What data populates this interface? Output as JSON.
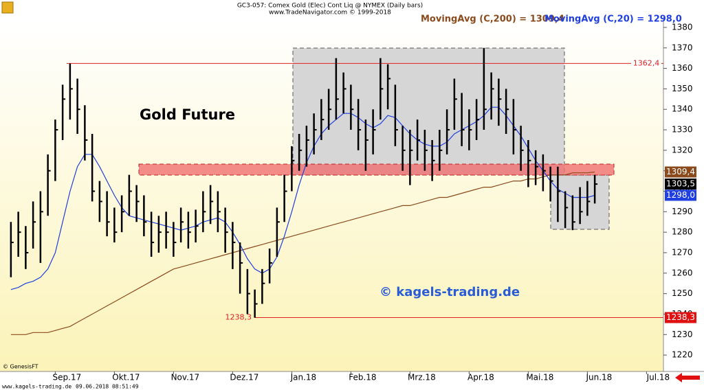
{
  "chart_data": {
    "type": "ohlc",
    "title": "Gold Future",
    "header": [
      "GC3-057:  Comex Gold (Elec) Cont Liq @ NYMEX  (Daily bars)",
      "www.TradeNavigator.com © 1999-2018"
    ],
    "categories": [
      null,
      null,
      null,
      null,
      null,
      null,
      "Sep.17",
      null,
      null,
      null,
      null,
      null,
      null,
      null,
      "Okt.17",
      null,
      null,
      null,
      null,
      null,
      null,
      null,
      "Nov.17",
      null,
      null,
      null,
      null,
      null,
      null,
      null,
      "Dez.17",
      null,
      null,
      null,
      null,
      null,
      null,
      null,
      "Jan.18",
      null,
      null,
      null,
      null,
      null,
      null,
      null,
      "Feb.18",
      null,
      null,
      null,
      null,
      null,
      null,
      null,
      "Mrz.18",
      null,
      null,
      null,
      null,
      null,
      null,
      null,
      "Apr.18",
      null,
      null,
      null,
      null,
      null,
      null,
      null,
      "Mai.18",
      null,
      null,
      null,
      null,
      null,
      null,
      null,
      "Jun.18",
      null,
      null,
      null,
      null,
      null,
      null,
      null,
      "Jul.18"
    ],
    "high": [
      1285,
      1290,
      1283,
      1295,
      1300,
      1318,
      1335,
      1352,
      1362.4,
      1355,
      1342,
      1328,
      1305,
      1300,
      1292,
      1298,
      1308,
      1303,
      1298,
      1290,
      1288,
      1290,
      1285,
      1292,
      1290,
      1291,
      1300,
      1303,
      1300,
      1292,
      1285,
      1275,
      1262,
      1252,
      1262,
      1272,
      1292,
      1308,
      1322,
      1328,
      1332,
      1338,
      1345,
      1350,
      1365,
      1358,
      1352,
      1345,
      1335,
      1340,
      1365,
      1362,
      1352,
      1332,
      1330,
      1335,
      1330,
      1325,
      1330,
      1340,
      1355,
      1348,
      1340,
      1345,
      1370,
      1358,
      1355,
      1350,
      1345,
      1332,
      1325,
      1320,
      1318,
      1312,
      1312,
      1300,
      1298,
      1302,
      1305,
      1308,
      null,
      null,
      null,
      null,
      null,
      null,
      null
    ],
    "low": [
      1258,
      1268,
      1262,
      1272,
      1265,
      1288,
      1305,
      1325,
      1335,
      1328,
      1315,
      1295,
      1285,
      1278,
      1275,
      1280,
      1288,
      1285,
      1278,
      1268,
      1270,
      1272,
      1268,
      1275,
      1272,
      1275,
      1280,
      1284,
      1280,
      1270,
      1262,
      1250,
      1240,
      1238.3,
      1245,
      1255,
      1268,
      1285,
      1300,
      1310,
      1312,
      1318,
      1325,
      1330,
      1335,
      1338,
      1330,
      1320,
      1310,
      1318,
      1335,
      1340,
      1322,
      1310,
      1303,
      1315,
      1310,
      1305,
      1310,
      1318,
      1330,
      1322,
      1320,
      1325,
      1330,
      1335,
      1332,
      1328,
      1318,
      1310,
      1302,
      1303,
      1300,
      1295,
      1285,
      1282,
      1281,
      1284,
      1288,
      1294,
      null,
      null,
      null,
      null,
      null,
      null,
      null
    ],
    "close": [
      1275,
      1280,
      1270,
      1285,
      1290,
      1310,
      1330,
      1345,
      1350,
      1340,
      1325,
      1300,
      1295,
      1285,
      1280,
      1290,
      1300,
      1295,
      1285,
      1275,
      1280,
      1280,
      1275,
      1285,
      1280,
      1283,
      1290,
      1295,
      1290,
      1280,
      1275,
      1265,
      1250,
      1245,
      1255,
      1265,
      1285,
      1300,
      1315,
      1320,
      1325,
      1330,
      1335,
      1340,
      1345,
      1350,
      1340,
      1330,
      1325,
      1330,
      1350,
      1355,
      1330,
      1320,
      1320,
      1325,
      1320,
      1315,
      1320,
      1330,
      1345,
      1330,
      1330,
      1335,
      1340,
      1350,
      1345,
      1340,
      1330,
      1320,
      1315,
      1312,
      1310,
      1305,
      1300,
      1292,
      1285,
      1290,
      1295,
      1303.5,
      null,
      null,
      null,
      null,
      null,
      null,
      null
    ],
    "bar_color": "#000000",
    "series": [
      {
        "name": "MovingAvg (C,200) = 1309,4",
        "color": "#8b4a1c",
        "values": [
          1230,
          1230,
          1230,
          1231,
          1231,
          1231,
          1232,
          1233,
          1234,
          1236,
          1238,
          1240,
          1242,
          1244,
          1246,
          1248,
          1250,
          1252,
          1254,
          1256,
          1258,
          1260,
          1262,
          1263,
          1264,
          1265,
          1266,
          1267,
          1268,
          1269,
          1270,
          1271,
          1272,
          1273,
          1274,
          1275,
          1276,
          1277,
          1278,
          1279,
          1280,
          1281,
          1282,
          1283,
          1284,
          1285,
          1286,
          1287,
          1288,
          1289,
          1290,
          1291,
          1292,
          1293,
          1293,
          1294,
          1295,
          1296,
          1297,
          1297,
          1298,
          1299,
          1300,
          1301,
          1302,
          1302,
          1303,
          1304,
          1305,
          1305,
          1306,
          1306,
          1307,
          1308,
          1308,
          1308,
          1309,
          1309,
          1309,
          1309.4,
          null,
          null,
          null,
          null,
          null,
          null,
          null
        ]
      },
      {
        "name": "MovingAvg (C,20) = 1298,0",
        "color": "#1f3fe0",
        "values": [
          1252,
          1253,
          1255,
          1256,
          1258,
          1262,
          1270,
          1285,
          1300,
          1312,
          1318,
          1318,
          1312,
          1305,
          1298,
          1292,
          1288,
          1287,
          1286,
          1285,
          1284,
          1283,
          1282,
          1281,
          1282,
          1283,
          1285,
          1286,
          1287,
          1285,
          1280,
          1274,
          1267,
          1262,
          1260,
          1262,
          1268,
          1278,
          1290,
          1303,
          1314,
          1322,
          1328,
          1332,
          1335,
          1338,
          1338,
          1336,
          1333,
          1331,
          1333,
          1337,
          1336,
          1332,
          1328,
          1325,
          1323,
          1322,
          1322,
          1324,
          1328,
          1330,
          1332,
          1334,
          1337,
          1341,
          1341,
          1337,
          1332,
          1327,
          1321,
          1315,
          1310,
          1305,
          1301,
          1299,
          1297,
          1297,
          1297,
          1298,
          null,
          null,
          null,
          null,
          null,
          null,
          null
        ]
      }
    ],
    "ylim": [
      1214,
      1384
    ],
    "yticks": [
      1220,
      1230,
      1240,
      1250,
      1260,
      1270,
      1280,
      1290,
      1300,
      1310,
      1320,
      1330,
      1340,
      1350,
      1360,
      1370,
      1380
    ],
    "levels": [
      {
        "value": 1362.4,
        "label": "1362,4"
      },
      {
        "value": 1238.3,
        "label": "1238,3"
      }
    ],
    "badges": [
      {
        "value": 1309.4,
        "label": "1309,4",
        "color": "#8b4a1c"
      },
      {
        "value": 1303.5,
        "label": "1303,5",
        "color": "#000000"
      },
      {
        "value": 1298.0,
        "label": "1298,0",
        "color": "#1f3fe0"
      },
      {
        "value": 1238.3,
        "label": "1238,3",
        "color": "#e01010"
      }
    ],
    "watermark": "© kagels-trading.de",
    "source": "© GenesisFT",
    "footer": {
      "site": "www.kagels-trading.de",
      "timestamp": "09.06.2018 08:51:49"
    }
  }
}
